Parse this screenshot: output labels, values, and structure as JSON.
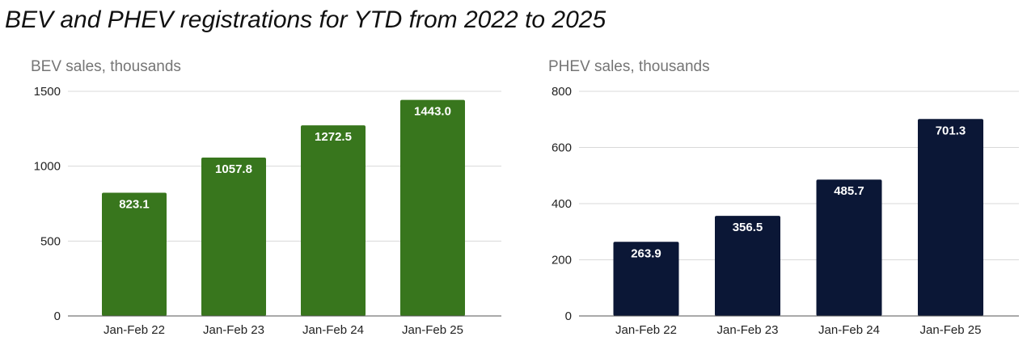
{
  "page": {
    "title": "BEV and PHEV registrations for YTD from 2022 to 2025"
  },
  "chart_data": [
    {
      "id": "bev",
      "type": "bar",
      "title": "",
      "ylabel": "BEV sales, thousands",
      "xlabel": "",
      "categories": [
        "Jan-Feb 22",
        "Jan-Feb 23",
        "Jan-Feb 24",
        "Jan-Feb 25"
      ],
      "values": [
        823.1,
        1057.8,
        1272.5,
        1443.0
      ],
      "value_labels": [
        "823.1",
        "1057.8",
        "1272.5",
        "1443.0"
      ],
      "ylim": [
        0,
        1500
      ],
      "yticks": [
        0,
        500,
        1000,
        1500
      ],
      "color": "#38761d",
      "grid": true,
      "legend": "none"
    },
    {
      "id": "phev",
      "type": "bar",
      "title": "",
      "ylabel": "PHEV sales, thousands",
      "xlabel": "",
      "categories": [
        "Jan-Feb 22",
        "Jan-Feb 23",
        "Jan-Feb 24",
        "Jan-Feb 25"
      ],
      "values": [
        263.9,
        356.5,
        485.7,
        701.3
      ],
      "value_labels": [
        "263.9",
        "356.5",
        "485.7",
        "701.3"
      ],
      "ylim": [
        0,
        800
      ],
      "yticks": [
        0,
        200,
        400,
        600,
        800
      ],
      "color": "#0b1736",
      "grid": true,
      "legend": "none"
    }
  ]
}
